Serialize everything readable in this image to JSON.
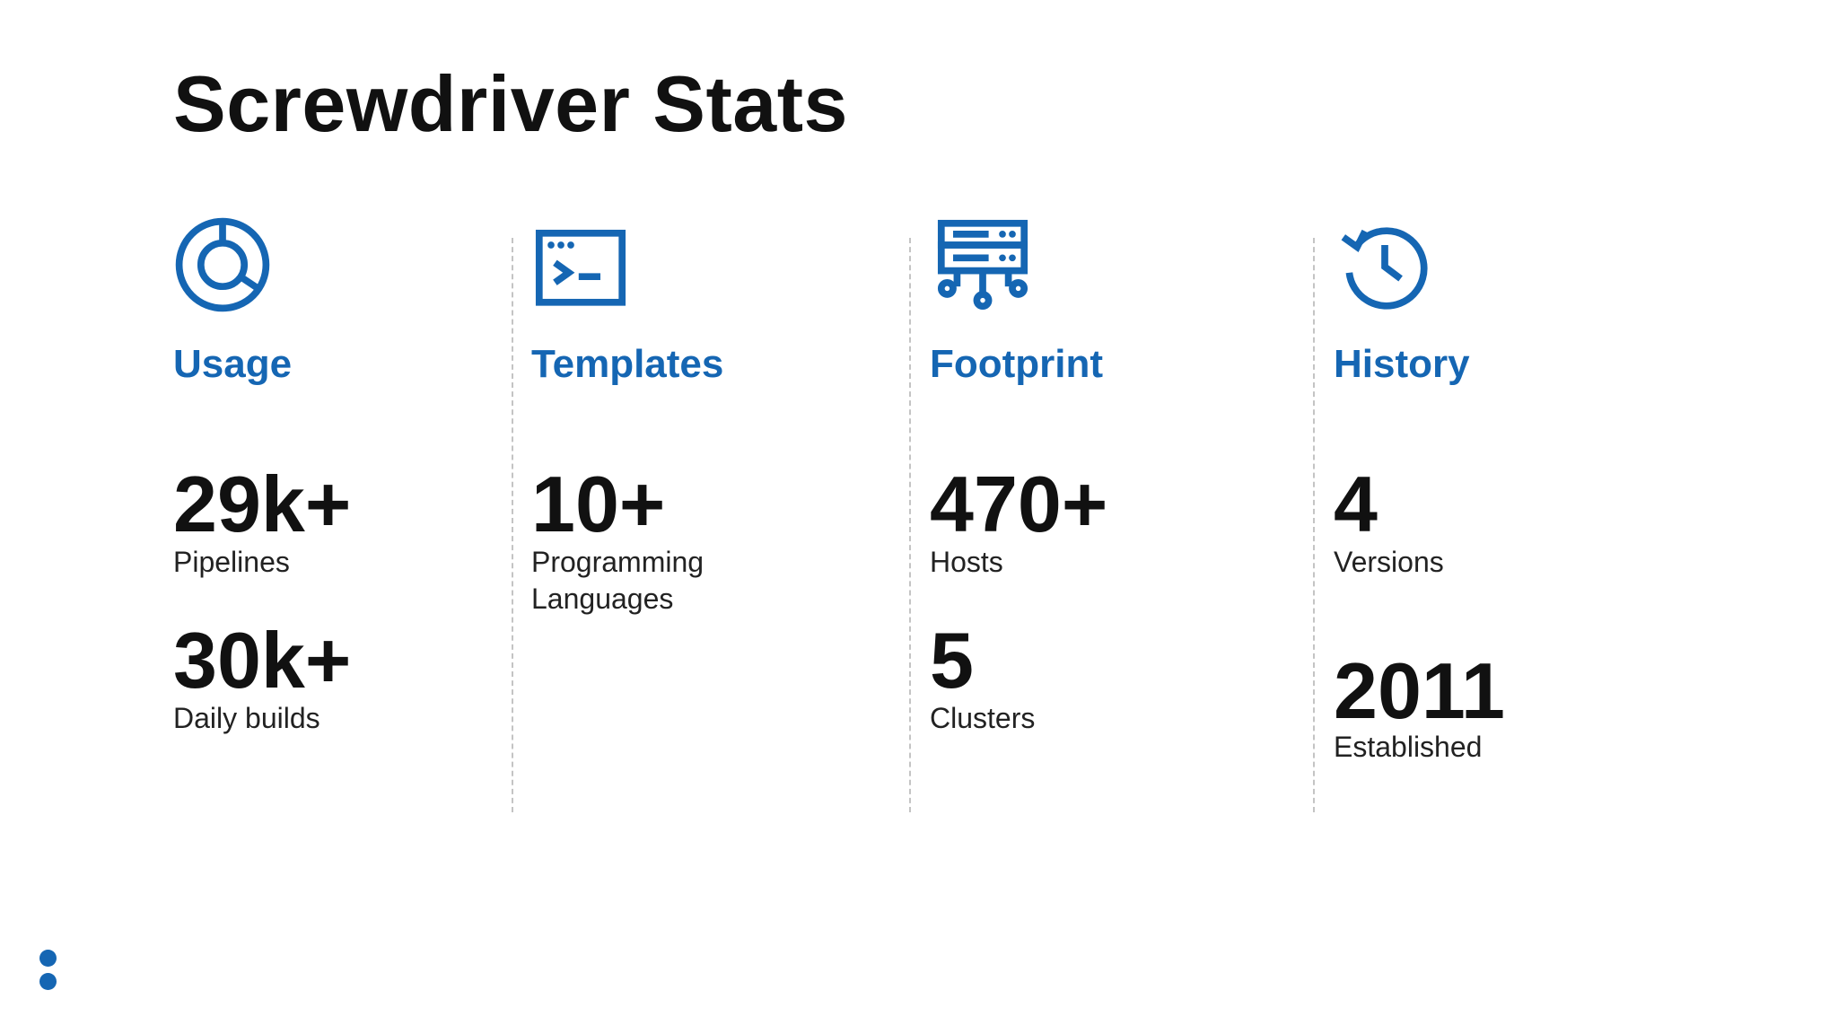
{
  "title": "Screwdriver Stats",
  "accent_color": "#1566b3",
  "columns": [
    {
      "heading": "Usage",
      "icon": "donut-chart-icon",
      "stats": [
        {
          "value": "29k+",
          "label": "Pipelines"
        },
        {
          "value": "30k+",
          "label": "Daily builds"
        }
      ]
    },
    {
      "heading": "Templates",
      "icon": "terminal-window-icon",
      "stats": [
        {
          "value": "10+",
          "label": "Programming Languages"
        }
      ]
    },
    {
      "heading": "Footprint",
      "icon": "server-network-icon",
      "stats": [
        {
          "value": "470+",
          "label": "Hosts"
        },
        {
          "value": "5",
          "label": "Clusters"
        }
      ]
    },
    {
      "heading": "History",
      "icon": "history-clock-icon",
      "stats": [
        {
          "value": "4",
          "label": "Versions"
        },
        {
          "value": "2011",
          "label": "Established"
        }
      ]
    }
  ]
}
